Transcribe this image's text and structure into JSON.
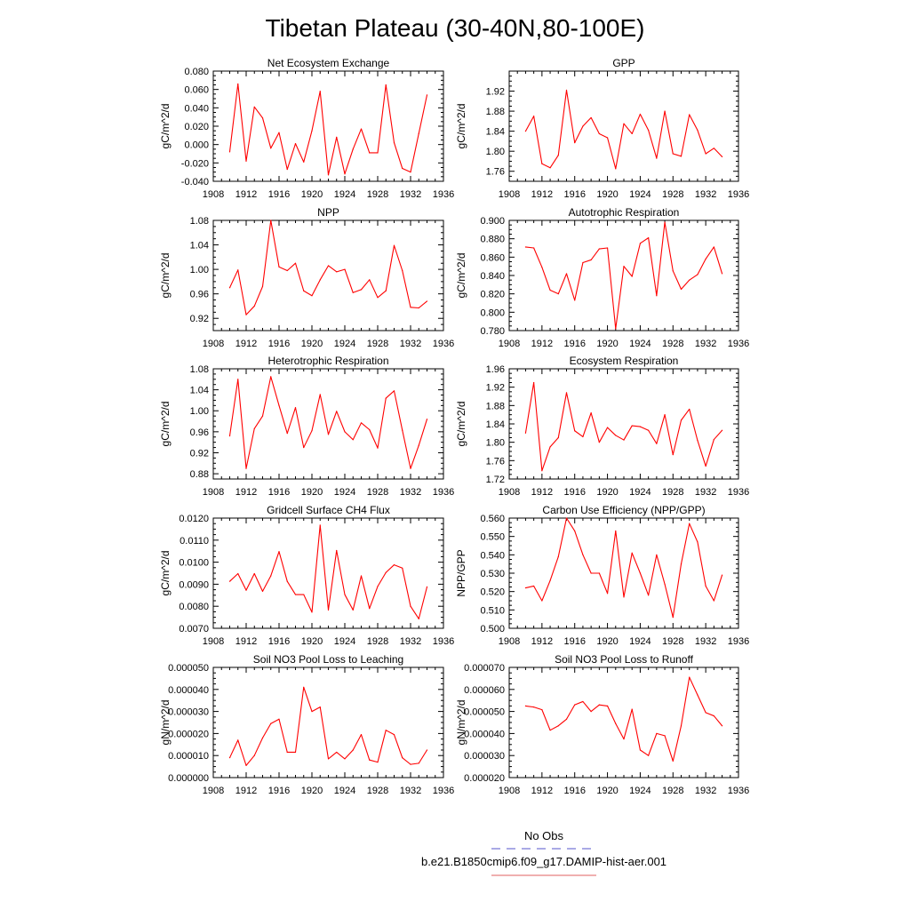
{
  "title": "Tibetan Plateau (30-40N,80-100E)",
  "legend": {
    "entries": [
      {
        "label": "No Obs",
        "color": "#5555cc",
        "style": "dashed"
      },
      {
        "label": "b.e21.B1850cmip6.f09_g17.DAMIP-hist-aer.001",
        "color": "#e06060",
        "style": "solid"
      }
    ]
  },
  "series_color": "#ff0000",
  "chart_data": [
    {
      "type": "line",
      "title": "Net Ecosystem Exchange",
      "ylabel": "gC/m^2/d",
      "xlim": [
        1908,
        1936
      ],
      "xticks": [
        "1908",
        "1912",
        "1916",
        "1920",
        "1924",
        "1928",
        "1932",
        "1936"
      ],
      "ylim": [
        -0.04,
        0.08
      ],
      "yticks": [
        "-0.040",
        "-0.020",
        "0.000",
        "0.020",
        "0.040",
        "0.060",
        "0.080"
      ],
      "x": [
        1910,
        1911,
        1912,
        1913,
        1914,
        1915,
        1916,
        1917,
        1918,
        1919,
        1920,
        1921,
        1922,
        1923,
        1924,
        1925,
        1926,
        1927,
        1928,
        1929,
        1930,
        1931,
        1932,
        1933,
        1934
      ],
      "series": [
        {
          "name": "b.e21.B1850cmip6.f09_g17.DAMIP-hist-aer.001",
          "values": [
            -0.008,
            0.066,
            -0.018,
            0.041,
            0.029,
            -0.004,
            0.013,
            -0.027,
            0.001,
            -0.019,
            0.015,
            0.058,
            -0.033,
            0.008,
            -0.032,
            -0.005,
            0.017,
            -0.009,
            -0.009,
            0.065,
            0.002,
            -0.026,
            -0.03,
            0.012,
            0.054
          ]
        }
      ]
    },
    {
      "type": "line",
      "title": "GPP",
      "ylabel": "gC/m^2/d",
      "xlim": [
        1908,
        1936
      ],
      "xticks": [
        "1908",
        "1912",
        "1916",
        "1920",
        "1924",
        "1928",
        "1932",
        "1936"
      ],
      "ylim": [
        1.74,
        1.96
      ],
      "yticks": [
        "1.76",
        "1.80",
        "1.84",
        "1.88",
        "1.92"
      ],
      "x": [
        1910,
        1911,
        1912,
        1913,
        1914,
        1915,
        1916,
        1917,
        1918,
        1919,
        1920,
        1921,
        1922,
        1923,
        1924,
        1925,
        1926,
        1927,
        1928,
        1929,
        1930,
        1931,
        1932,
        1933,
        1934
      ],
      "series": [
        {
          "name": "b.e21.B1850cmip6.f09_g17.DAMIP-hist-aer.001",
          "values": [
            1.84,
            1.87,
            1.775,
            1.767,
            1.792,
            1.922,
            1.817,
            1.85,
            1.867,
            1.835,
            1.827,
            1.765,
            1.855,
            1.835,
            1.874,
            1.842,
            1.786,
            1.88,
            1.795,
            1.79,
            1.873,
            1.842,
            1.795,
            1.806,
            1.789
          ]
        }
      ]
    },
    {
      "type": "line",
      "title": "NPP",
      "ylabel": "gC/m^2/d",
      "xlim": [
        1908,
        1936
      ],
      "xticks": [
        "1908",
        "1912",
        "1916",
        "1920",
        "1924",
        "1928",
        "1932",
        "1936"
      ],
      "ylim": [
        0.9,
        1.08
      ],
      "yticks": [
        "0.92",
        "0.96",
        "1.00",
        "1.04",
        "1.08"
      ],
      "x": [
        1910,
        1911,
        1912,
        1913,
        1914,
        1915,
        1916,
        1917,
        1918,
        1919,
        1920,
        1921,
        1922,
        1923,
        1924,
        1925,
        1926,
        1927,
        1928,
        1929,
        1930,
        1931,
        1932,
        1933,
        1934
      ],
      "series": [
        {
          "name": "b.e21.B1850cmip6.f09_g17.DAMIP-hist-aer.001",
          "values": [
            0.97,
            0.999,
            0.926,
            0.94,
            0.972,
            1.08,
            1.004,
            0.998,
            1.01,
            0.965,
            0.957,
            0.983,
            1.006,
            0.996,
            1.0,
            0.962,
            0.967,
            0.983,
            0.954,
            0.965,
            1.039,
            0.998,
            0.938,
            0.937,
            0.948
          ]
        }
      ]
    },
    {
      "type": "line",
      "title": "Autotrophic Respiration",
      "ylabel": "gC/m^2/d",
      "xlim": [
        1908,
        1936
      ],
      "xticks": [
        "1908",
        "1912",
        "1916",
        "1920",
        "1924",
        "1928",
        "1932",
        "1936"
      ],
      "ylim": [
        0.78,
        0.9
      ],
      "yticks": [
        "0.780",
        "0.800",
        "0.820",
        "0.840",
        "0.860",
        "0.880",
        "0.900"
      ],
      "x": [
        1910,
        1911,
        1912,
        1913,
        1914,
        1915,
        1916,
        1917,
        1918,
        1919,
        1920,
        1921,
        1922,
        1923,
        1924,
        1925,
        1926,
        1927,
        1928,
        1929,
        1930,
        1931,
        1932,
        1933,
        1934
      ],
      "series": [
        {
          "name": "b.e21.B1850cmip6.f09_g17.DAMIP-hist-aer.001",
          "values": [
            0.871,
            0.87,
            0.849,
            0.824,
            0.82,
            0.842,
            0.813,
            0.854,
            0.857,
            0.869,
            0.87,
            0.782,
            0.85,
            0.839,
            0.875,
            0.881,
            0.818,
            0.898,
            0.845,
            0.825,
            0.835,
            0.841,
            0.858,
            0.871,
            0.842
          ]
        }
      ]
    },
    {
      "type": "line",
      "title": "Heterotrophic Respiration",
      "ylabel": "gC/m^2/d",
      "xlim": [
        1908,
        1936
      ],
      "xticks": [
        "1908",
        "1912",
        "1916",
        "1920",
        "1924",
        "1928",
        "1932",
        "1936"
      ],
      "ylim": [
        0.87,
        1.08
      ],
      "yticks": [
        "0.88",
        "0.92",
        "0.96",
        "1.00",
        "1.04",
        "1.08"
      ],
      "x": [
        1910,
        1911,
        1912,
        1913,
        1914,
        1915,
        1916,
        1917,
        1918,
        1919,
        1920,
        1921,
        1922,
        1923,
        1924,
        1925,
        1926,
        1927,
        1928,
        1929,
        1930,
        1931,
        1932,
        1933,
        1934
      ],
      "series": [
        {
          "name": "b.e21.B1850cmip6.f09_g17.DAMIP-hist-aer.001",
          "values": [
            0.952,
            1.06,
            0.89,
            0.966,
            0.99,
            1.065,
            1.01,
            0.957,
            1.006,
            0.93,
            0.962,
            1.031,
            0.955,
            0.999,
            0.96,
            0.945,
            0.977,
            0.964,
            0.929,
            1.024,
            1.038,
            0.963,
            0.89,
            0.934,
            0.984
          ]
        }
      ]
    },
    {
      "type": "line",
      "title": "Ecosystem Respiration",
      "ylabel": "gC/m^2/d",
      "xlim": [
        1908,
        1936
      ],
      "xticks": [
        "1908",
        "1912",
        "1916",
        "1920",
        "1924",
        "1928",
        "1932",
        "1936"
      ],
      "ylim": [
        1.72,
        1.96
      ],
      "yticks": [
        "1.72",
        "1.76",
        "1.80",
        "1.84",
        "1.88",
        "1.92",
        "1.96"
      ],
      "x": [
        1910,
        1911,
        1912,
        1913,
        1914,
        1915,
        1916,
        1917,
        1918,
        1919,
        1920,
        1921,
        1922,
        1923,
        1924,
        1925,
        1926,
        1927,
        1928,
        1929,
        1930,
        1931,
        1932,
        1933,
        1934
      ],
      "series": [
        {
          "name": "b.e21.B1850cmip6.f09_g17.DAMIP-hist-aer.001",
          "values": [
            1.82,
            1.93,
            1.738,
            1.79,
            1.81,
            1.908,
            1.825,
            1.812,
            1.864,
            1.8,
            1.832,
            1.815,
            1.805,
            1.836,
            1.834,
            1.826,
            1.797,
            1.86,
            1.773,
            1.848,
            1.872,
            1.804,
            1.748,
            1.806,
            1.826
          ]
        }
      ]
    },
    {
      "type": "line",
      "title": "Gridcell Surface CH4 Flux",
      "ylabel": "gC/m^2/d",
      "xlim": [
        1908,
        1936
      ],
      "xticks": [
        "1908",
        "1912",
        "1916",
        "1920",
        "1924",
        "1928",
        "1932",
        "1936"
      ],
      "ylim": [
        0.007,
        0.012
      ],
      "yticks": [
        "0.0070",
        "0.0080",
        "0.0090",
        "0.0100",
        "0.0110",
        "0.0120"
      ],
      "x": [
        1910,
        1911,
        1912,
        1913,
        1914,
        1915,
        1916,
        1917,
        1918,
        1919,
        1920,
        1921,
        1922,
        1923,
        1924,
        1925,
        1926,
        1927,
        1928,
        1929,
        1930,
        1931,
        1932,
        1933,
        1934
      ],
      "series": [
        {
          "name": "b.e21.B1850cmip6.f09_g17.DAMIP-hist-aer.001",
          "values": [
            0.00913,
            0.00948,
            0.00873,
            0.00948,
            0.00868,
            0.00938,
            0.01048,
            0.00913,
            0.00853,
            0.00853,
            0.00773,
            0.01168,
            0.00783,
            0.01053,
            0.00853,
            0.00783,
            0.00938,
            0.0079,
            0.0089,
            0.00953,
            0.00988,
            0.00973,
            0.008,
            0.00743,
            0.00888
          ]
        }
      ]
    },
    {
      "type": "line",
      "title": "Carbon Use Efficiency (NPP/GPP)",
      "ylabel": "NPP/GPP",
      "xlim": [
        1908,
        1936
      ],
      "xticks": [
        "1908",
        "1912",
        "1916",
        "1920",
        "1924",
        "1928",
        "1932",
        "1936"
      ],
      "ylim": [
        0.5,
        0.56
      ],
      "yticks": [
        "0.500",
        "0.510",
        "0.520",
        "0.530",
        "0.540",
        "0.550",
        "0.560"
      ],
      "x": [
        1910,
        1911,
        1912,
        1913,
        1914,
        1915,
        1916,
        1917,
        1918,
        1919,
        1920,
        1921,
        1922,
        1923,
        1924,
        1925,
        1926,
        1927,
        1928,
        1929,
        1930,
        1931,
        1932,
        1933,
        1934
      ],
      "series": [
        {
          "name": "b.e21.B1850cmip6.f09_g17.DAMIP-hist-aer.001",
          "values": [
            0.522,
            0.523,
            0.515,
            0.526,
            0.539,
            0.56,
            0.553,
            0.54,
            0.53,
            0.53,
            0.519,
            0.553,
            0.517,
            0.541,
            0.53,
            0.518,
            0.54,
            0.524,
            0.506,
            0.535,
            0.557,
            0.547,
            0.523,
            0.515,
            0.529
          ]
        }
      ]
    },
    {
      "type": "line",
      "title": "Soil NO3 Pool Loss to Leaching",
      "ylabel": "gN/m^2/d",
      "xlim": [
        1908,
        1936
      ],
      "xticks": [
        "1908",
        "1912",
        "1916",
        "1920",
        "1924",
        "1928",
        "1932",
        "1936"
      ],
      "ylim": [
        0,
        5e-05
      ],
      "yticks": [
        "0.000000",
        "0.000010",
        "0.000020",
        "0.000030",
        "0.000040",
        "0.000050"
      ],
      "x": [
        1910,
        1911,
        1912,
        1913,
        1914,
        1915,
        1916,
        1917,
        1918,
        1919,
        1920,
        1921,
        1922,
        1923,
        1924,
        1925,
        1926,
        1927,
        1928,
        1929,
        1930,
        1931,
        1932,
        1933,
        1934
      ],
      "series": [
        {
          "name": "b.e21.B1850cmip6.f09_g17.DAMIP-hist-aer.001",
          "values": [
            9e-06,
            1.7e-05,
            5.5e-06,
            1e-05,
            1.8e-05,
            2.45e-05,
            2.65e-05,
            1.15e-05,
            1.15e-05,
            4.1e-05,
            3e-05,
            3.2e-05,
            8.5e-06,
            1.15e-05,
            8.5e-06,
            1.25e-05,
            1.95e-05,
            8e-06,
            7e-06,
            2.15e-05,
            1.95e-05,
            9e-06,
            6e-06,
            6.5e-06,
            1.25e-05
          ]
        }
      ]
    },
    {
      "type": "line",
      "title": "Soil NO3 Pool Loss to Runoff",
      "ylabel": "gN/m^2/d",
      "xlim": [
        1908,
        1936
      ],
      "xticks": [
        "1908",
        "1912",
        "1916",
        "1920",
        "1924",
        "1928",
        "1932",
        "1936"
      ],
      "ylim": [
        2e-05,
        7e-05
      ],
      "yticks": [
        "0.000020",
        "0.000030",
        "0.000040",
        "0.000050",
        "0.000060",
        "0.000070"
      ],
      "x": [
        1910,
        1911,
        1912,
        1913,
        1914,
        1915,
        1916,
        1917,
        1918,
        1919,
        1920,
        1921,
        1922,
        1923,
        1924,
        1925,
        1926,
        1927,
        1928,
        1929,
        1930,
        1931,
        1932,
        1933,
        1934
      ],
      "series": [
        {
          "name": "b.e21.B1850cmip6.f09_g17.DAMIP-hist-aer.001",
          "values": [
            5.25e-05,
            5.2e-05,
            5.08e-05,
            4.15e-05,
            4.35e-05,
            4.65e-05,
            5.3e-05,
            5.45e-05,
            5e-05,
            5.3e-05,
            5.25e-05,
            4.45e-05,
            3.75e-05,
            5.1e-05,
            3.25e-05,
            3e-05,
            4e-05,
            3.9e-05,
            2.75e-05,
            4.35e-05,
            6.55e-05,
            5.75e-05,
            4.95e-05,
            4.8e-05,
            4.35e-05
          ]
        }
      ]
    }
  ]
}
